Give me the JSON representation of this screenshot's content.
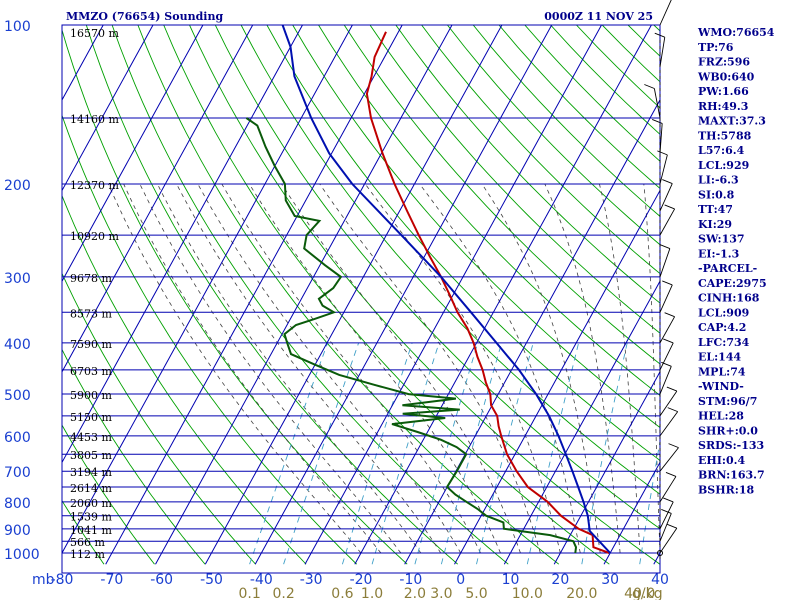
{
  "chart_data": {
    "type": "line",
    "title": "MMZO (76654) Sounding",
    "time_label": "0000Z 11 NOV 25",
    "axis_unit_left": "mb",
    "axis_unit_right": "g/kg",
    "xlim": [
      -80,
      40
    ],
    "pressure_range": [
      100,
      1000
    ],
    "pressure_ticks": [
      "100",
      "200",
      "300",
      "400",
      "500",
      "600",
      "700",
      "800",
      "900",
      "1000"
    ],
    "temperature_ticks": [
      "-80",
      "-70",
      "-60",
      "-50",
      "-40",
      "-30",
      "-20",
      "-10",
      "0",
      "10",
      "20",
      "30",
      "40"
    ],
    "mixing_ratio_ticks": [
      "0.1",
      "0.2",
      "0.6",
      "1.0",
      "2.0",
      "3.0",
      "5.0",
      "10.0",
      "20.0",
      "40.0"
    ],
    "mixing_ratio_values": [
      0.1,
      0.2,
      0.6,
      1.0,
      2.0,
      3.0,
      5.0,
      10.0,
      20.0,
      40.0
    ],
    "height_labels": [
      {
        "p": 103,
        "label": "16570 m"
      },
      {
        "p": 150,
        "label": "14160 m"
      },
      {
        "p": 200,
        "label": "12370 m"
      },
      {
        "p": 250,
        "label": "10920 m"
      },
      {
        "p": 300,
        "label": "9678 m"
      },
      {
        "p": 350,
        "label": "8573 m"
      },
      {
        "p": 400,
        "label": "7590 m"
      },
      {
        "p": 450,
        "label": "6703 m"
      },
      {
        "p": 500,
        "label": "5900 m"
      },
      {
        "p": 550,
        "label": "5150 m"
      },
      {
        "p": 600,
        "label": "4453 m"
      },
      {
        "p": 650,
        "label": "3805 m"
      },
      {
        "p": 700,
        "label": "3194 m"
      },
      {
        "p": 750,
        "label": "2614 m"
      },
      {
        "p": 800,
        "label": "2060 m"
      },
      {
        "p": 850,
        "label": "1539 m"
      },
      {
        "p": 900,
        "label": "1041 m"
      },
      {
        "p": 950,
        "label": "566 m"
      },
      {
        "p": 1000,
        "label": "112 m"
      }
    ],
    "series": [
      {
        "name": "Temperature",
        "color": "#c00000",
        "points": [
          [
            1000,
            29.8
          ],
          [
            975,
            26
          ],
          [
            925,
            24.5
          ],
          [
            900,
            21
          ],
          [
            850,
            16
          ],
          [
            800,
            11.8
          ],
          [
            750,
            6.2
          ],
          [
            700,
            2.2
          ],
          [
            650,
            -1.6
          ],
          [
            600,
            -4.8
          ],
          [
            575,
            -6.4
          ],
          [
            550,
            -7.8
          ],
          [
            525,
            -10.2
          ],
          [
            500,
            -11.6
          ],
          [
            475,
            -13.8
          ],
          [
            450,
            -15.8
          ],
          [
            425,
            -18.3
          ],
          [
            400,
            -20.6
          ],
          [
            375,
            -23.5
          ],
          [
            350,
            -27.2
          ],
          [
            325,
            -30.6
          ],
          [
            300,
            -34.4
          ],
          [
            275,
            -38.8
          ],
          [
            250,
            -43.5
          ],
          [
            225,
            -48.5
          ],
          [
            200,
            -54
          ],
          [
            175,
            -59.8
          ],
          [
            150,
            -66
          ],
          [
            135,
            -69.5
          ],
          [
            125,
            -70.5
          ],
          [
            115,
            -72
          ],
          [
            103,
            -72.5
          ]
        ]
      },
      {
        "name": "Dewpoint",
        "color": "#0a5a0a",
        "points": [
          [
            1000,
            23
          ],
          [
            975,
            22.5
          ],
          [
            950,
            21.3
          ],
          [
            925,
            16
          ],
          [
            900,
            6
          ],
          [
            875,
            5.2
          ],
          [
            850,
            1
          ],
          [
            825,
            -1.5
          ],
          [
            800,
            -4.5
          ],
          [
            775,
            -7.5
          ],
          [
            750,
            -10
          ],
          [
            700,
            -9.8
          ],
          [
            650,
            -9.8
          ],
          [
            630,
            -12.5
          ],
          [
            610,
            -16.5
          ],
          [
            590,
            -22
          ],
          [
            570,
            -28
          ],
          [
            555,
            -18
          ],
          [
            545,
            -27
          ],
          [
            535,
            -16
          ],
          [
            525,
            -28
          ],
          [
            510,
            -18
          ],
          [
            500,
            -28
          ],
          [
            480,
            -36
          ],
          [
            460,
            -44
          ],
          [
            440,
            -50
          ],
          [
            420,
            -56
          ],
          [
            400,
            -58
          ],
          [
            385,
            -59.5
          ],
          [
            370,
            -58.2
          ],
          [
            360,
            -55
          ],
          [
            350,
            -52
          ],
          [
            340,
            -55
          ],
          [
            330,
            -56.5
          ],
          [
            315,
            -54.8
          ],
          [
            300,
            -54.5
          ],
          [
            285,
            -59
          ],
          [
            265,
            -65
          ],
          [
            250,
            -66
          ],
          [
            235,
            -65
          ],
          [
            230,
            -70.5
          ],
          [
            215,
            -74
          ],
          [
            200,
            -76
          ],
          [
            185,
            -80
          ],
          [
            170,
            -84
          ],
          [
            155,
            -88
          ],
          [
            150,
            -91
          ]
        ]
      },
      {
        "name": "Parcel",
        "color": "#0010b0",
        "points": [
          [
            1000,
            30
          ],
          [
            950,
            26.5
          ],
          [
            909,
            23.5
          ],
          [
            850,
            21.4
          ],
          [
            800,
            19
          ],
          [
            750,
            16.3
          ],
          [
            700,
            13.4
          ],
          [
            650,
            10.2
          ],
          [
            600,
            6.7
          ],
          [
            550,
            2.6
          ],
          [
            500,
            -2.4
          ],
          [
            450,
            -8.5
          ],
          [
            400,
            -16
          ],
          [
            350,
            -24.5
          ],
          [
            300,
            -34.4
          ],
          [
            250,
            -47
          ],
          [
            200,
            -62.5
          ],
          [
            175,
            -70.5
          ],
          [
            150,
            -78
          ],
          [
            125,
            -86
          ],
          [
            110,
            -90
          ],
          [
            100,
            -94
          ]
        ]
      }
    ]
  },
  "indices": [
    "WMO:76654",
    "TP:76",
    "FRZ:596",
    "WB0:640",
    "PW:1.66",
    "RH:49.3",
    "MAXT:37.3",
    "TH:5788",
    "L57:6.4",
    "LCL:929",
    "LI:-6.3",
    "SI:0.8",
    "TT:47",
    "KI:29",
    "SW:137",
    "EI:-1.3",
    "-PARCEL-",
    "CAPE:2975",
    "CINH:168",
    "LCL:909",
    "CAP:4.2",
    "LFC:734",
    "EL:144",
    "MPL:74",
    "-WIND-",
    "STM:96/7",
    "HEL:28",
    "SHR+:0.0",
    "SRDS:-133",
    "EHI:0.4",
    "BRN:163.7",
    "BSHR:18"
  ],
  "colors": {
    "isobar": "#0000b0",
    "isotherm": "#0000b0",
    "dry_adiabat": "#00a000",
    "moist_adiabat": "#404040",
    "mixing_ratio": "#40a0c8",
    "label": "#00008b"
  }
}
